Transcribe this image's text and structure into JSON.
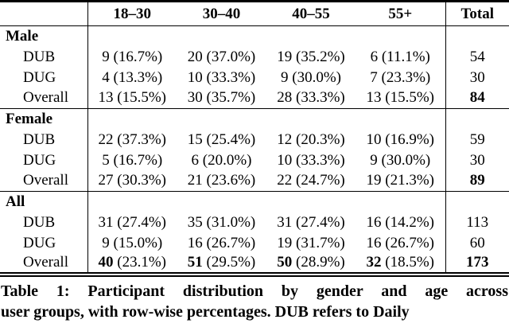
{
  "table": {
    "column_headers": [
      "",
      "18–30",
      "30–40",
      "40–55",
      "55+",
      "Total"
    ],
    "groups": [
      {
        "label": "Male",
        "rows": [
          {
            "label": "DUB",
            "cells": [
              {
                "count": "9",
                "pct": "(16.7%)"
              },
              {
                "count": "20",
                "pct": "(37.0%)"
              },
              {
                "count": "19",
                "pct": "(35.2%)"
              },
              {
                "count": "6",
                "pct": "(11.1%)"
              }
            ],
            "total": "54",
            "bold_counts": false,
            "bold_total": false
          },
          {
            "label": "DUG",
            "cells": [
              {
                "count": "4",
                "pct": "(13.3%)"
              },
              {
                "count": "10",
                "pct": "(33.3%)"
              },
              {
                "count": "9",
                "pct": "(30.0%)"
              },
              {
                "count": "7",
                "pct": "(23.3%)"
              }
            ],
            "total": "30",
            "bold_counts": false,
            "bold_total": false
          },
          {
            "label": "Overall",
            "cells": [
              {
                "count": "13",
                "pct": "(15.5%)"
              },
              {
                "count": "30",
                "pct": "(35.7%)"
              },
              {
                "count": "28",
                "pct": "(33.3%)"
              },
              {
                "count": "13",
                "pct": "(15.5%)"
              }
            ],
            "total": "84",
            "bold_counts": false,
            "bold_total": true
          }
        ]
      },
      {
        "label": "Female",
        "rows": [
          {
            "label": "DUB",
            "cells": [
              {
                "count": "22",
                "pct": "(37.3%)"
              },
              {
                "count": "15",
                "pct": "(25.4%)"
              },
              {
                "count": "12",
                "pct": "(20.3%)"
              },
              {
                "count": "10",
                "pct": "(16.9%)"
              }
            ],
            "total": "59",
            "bold_counts": false,
            "bold_total": false
          },
          {
            "label": "DUG",
            "cells": [
              {
                "count": "5",
                "pct": "(16.7%)"
              },
              {
                "count": "6",
                "pct": "(20.0%)"
              },
              {
                "count": "10",
                "pct": "(33.3%)"
              },
              {
                "count": "9",
                "pct": "(30.0%)"
              }
            ],
            "total": "30",
            "bold_counts": false,
            "bold_total": false
          },
          {
            "label": "Overall",
            "cells": [
              {
                "count": "27",
                "pct": "(30.3%)"
              },
              {
                "count": "21",
                "pct": "(23.6%)"
              },
              {
                "count": "22",
                "pct": "(24.7%)"
              },
              {
                "count": "19",
                "pct": "(21.3%)"
              }
            ],
            "total": "89",
            "bold_counts": false,
            "bold_total": true
          }
        ]
      },
      {
        "label": "All",
        "rows": [
          {
            "label": "DUB",
            "cells": [
              {
                "count": "31",
                "pct": "(27.4%)"
              },
              {
                "count": "35",
                "pct": "(31.0%)"
              },
              {
                "count": "31",
                "pct": "(27.4%)"
              },
              {
                "count": "16",
                "pct": "(14.2%)"
              }
            ],
            "total": "113",
            "bold_counts": false,
            "bold_total": false
          },
          {
            "label": "DUG",
            "cells": [
              {
                "count": "9",
                "pct": "(15.0%)"
              },
              {
                "count": "16",
                "pct": "(26.7%)"
              },
              {
                "count": "19",
                "pct": "(31.7%)"
              },
              {
                "count": "16",
                "pct": "(26.7%)"
              }
            ],
            "total": "60",
            "bold_counts": false,
            "bold_total": false
          },
          {
            "label": "Overall",
            "cells": [
              {
                "count": "40",
                "pct": "(23.1%)"
              },
              {
                "count": "51",
                "pct": "(29.5%)"
              },
              {
                "count": "50",
                "pct": "(28.9%)"
              },
              {
                "count": "32",
                "pct": "(18.5%)"
              }
            ],
            "total": "173",
            "bold_counts": true,
            "bold_total": true
          }
        ]
      }
    ]
  },
  "caption": {
    "line1": "Table 1: Participant distribution by gender and age across",
    "line2": "user groups, with row-wise percentages. DUB refers to Daily"
  }
}
